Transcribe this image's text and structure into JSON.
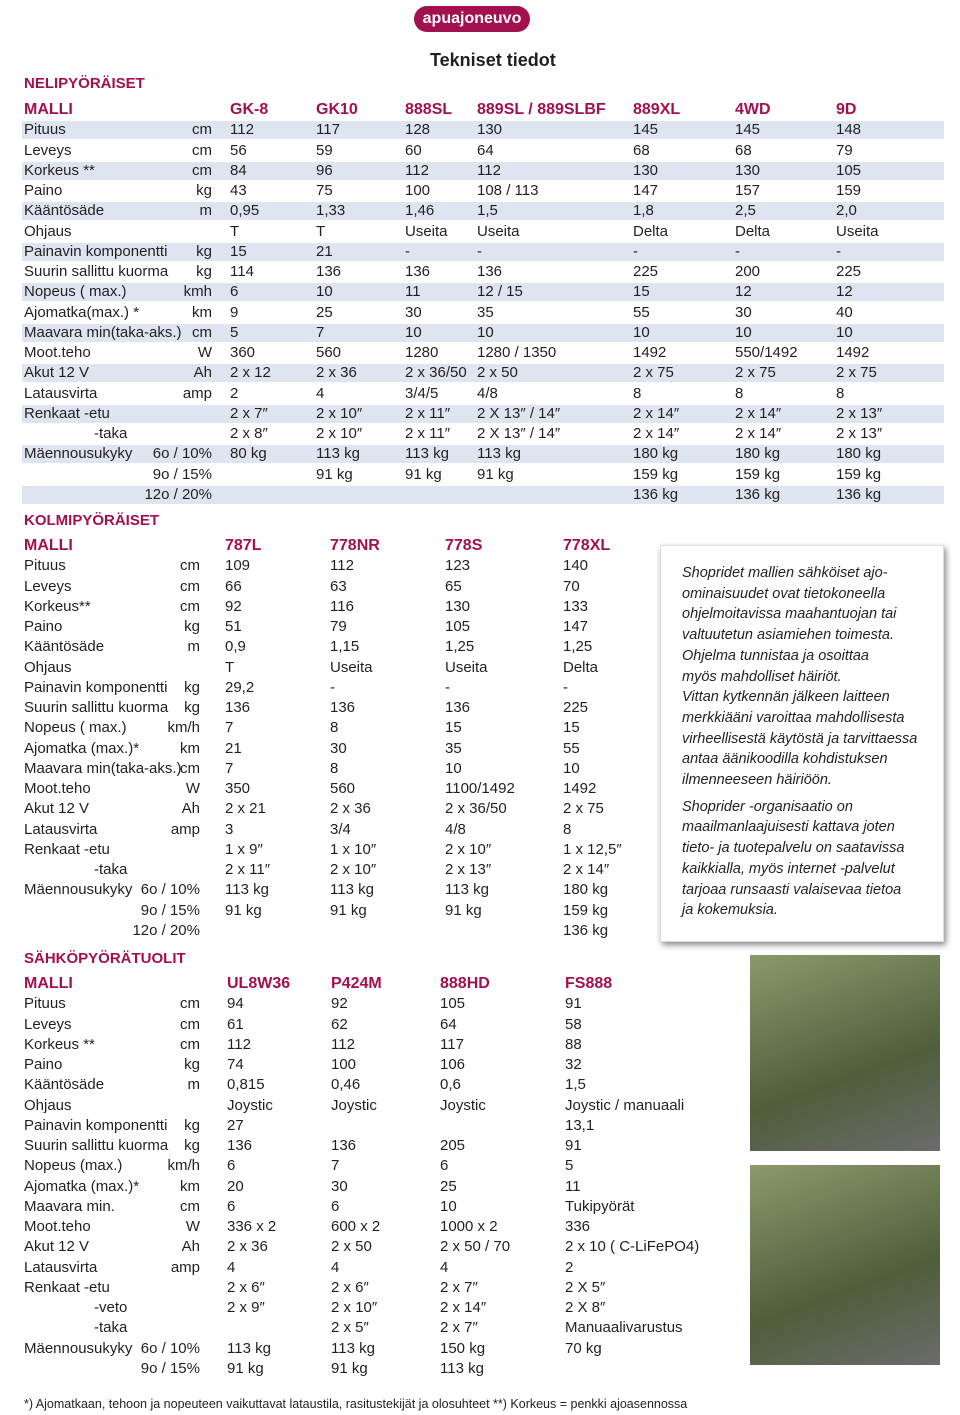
{
  "logo": "apuajoneuvo",
  "title": "Tekniset tiedot",
  "sections": [
    {
      "heading": "NELIPYÖRÄISET",
      "header": [
        "MALLI",
        "GK-8",
        "GK10",
        "888SL",
        "889SL / 889SLBF",
        "889XL",
        "4WD",
        "9D"
      ],
      "rows": [
        [
          "Pituus",
          "cm",
          "112",
          "117",
          "128",
          "130",
          "145",
          "145",
          "148"
        ],
        [
          "Leveys",
          "cm",
          "56",
          "59",
          "60",
          "64",
          "68",
          "68",
          "79"
        ],
        [
          "Korkeus **",
          "cm",
          "84",
          "96",
          "112",
          "112",
          "130",
          "130",
          "105"
        ],
        [
          "Paino",
          "kg",
          "43",
          "75",
          "100",
          "108 / 113",
          "147",
          "157",
          "159"
        ],
        [
          "Kääntösäde",
          "m",
          "0,95",
          "1,33",
          "1,46",
          "1,5",
          "1,8",
          "2,5",
          "2,0"
        ],
        [
          "Ohjaus",
          null,
          "T",
          "T",
          "Useita",
          "Useita",
          "Delta",
          "Delta",
          "Useita"
        ],
        [
          "Painavin komponentti",
          "kg",
          "15",
          "21",
          "-",
          "-",
          "-",
          "-",
          "-"
        ],
        [
          "Suurin sallittu kuorma",
          "kg",
          "114",
          "136",
          "136",
          "136",
          "225",
          "200",
          "225"
        ],
        [
          "Nopeus ( max.)",
          "kmh",
          "6",
          "10",
          "11",
          "12 / 15",
          "15",
          "12",
          "12"
        ],
        [
          "Ajomatka(max.) *",
          "km",
          "9",
          "25",
          "30",
          "35",
          "55",
          "30",
          "40"
        ],
        [
          "Maavara min(taka-aks.)",
          "cm",
          "5",
          "7",
          "10",
          "10",
          "10",
          "10",
          "10"
        ],
        [
          "Moot.teho",
          "W",
          "360",
          "560",
          "1280",
          "1280 / 1350",
          "1492",
          "550/1492",
          "1492"
        ],
        [
          "Akut 12 V",
          "Ah",
          "2 x 12",
          "2 x 36",
          "2 x 36/50",
          "2 x 50",
          "2 x 75",
          "2 x 75",
          "2 x 75"
        ],
        [
          "Latausvirta",
          "amp",
          "2",
          "4",
          "3/4/5",
          "4/8",
          "8",
          "8",
          "8"
        ],
        [
          "Renkaat -etu",
          null,
          "2 x 7″",
          "2 x 10″",
          "2 x 11″",
          "2 X 13″ / 14″",
          "2 x 14″",
          "2 x 14″",
          "2 x 13″"
        ],
        [
          "-taka",
          null,
          "2 x 8″",
          "2 x 10″",
          "2 x 11″",
          "2 X 13″ / 14″",
          "2 x 14″",
          "2 x 14″",
          "2 x 13″"
        ],
        [
          "Mäennousukyky",
          "6o / 10%",
          "80 kg",
          "113 kg",
          "113 kg",
          "113 kg",
          "180 kg",
          "180 kg",
          "180 kg"
        ],
        [
          null,
          "9o / 15%",
          null,
          "91 kg",
          "91 kg",
          "91 kg",
          "159 kg",
          "159 kg",
          "159 kg"
        ],
        [
          null,
          "12o / 20%",
          null,
          null,
          null,
          null,
          "136 kg",
          "136 kg",
          "136 kg"
        ]
      ]
    },
    {
      "heading": "KOLMIPYÖRÄISET",
      "header": [
        "MALLI",
        "787L",
        "778NR",
        "778S",
        "778XL"
      ],
      "rows": [
        [
          "Pituus",
          "cm",
          "109",
          "112",
          "123",
          "140"
        ],
        [
          "Leveys",
          "cm",
          "66",
          "63",
          "65",
          "70"
        ],
        [
          "Korkeus**",
          "cm",
          "92",
          "116",
          "130",
          "133"
        ],
        [
          "Paino",
          "kg",
          "51",
          "79",
          "105",
          "147"
        ],
        [
          "Kääntösäde",
          "m",
          "0,9",
          "1,15",
          "1,25",
          "1,25"
        ],
        [
          "Ohjaus",
          null,
          "T",
          "Useita",
          "Useita",
          "Delta"
        ],
        [
          "Painavin komponentti",
          "kg",
          "29,2",
          "-",
          "-",
          "-"
        ],
        [
          "Suurin sallittu kuorma",
          "kg",
          "136",
          "136",
          "136",
          "225"
        ],
        [
          "Nopeus ( max.)",
          "km/h",
          "7",
          "8",
          "15",
          "15"
        ],
        [
          "Ajomatka (max.)*",
          "km",
          "21",
          "30",
          "35",
          "55"
        ],
        [
          "Maavara min(taka-aks.)",
          "cm",
          "7",
          "8",
          "10",
          "10"
        ],
        [
          "Moot.teho",
          "W",
          "350",
          "560",
          "1100/1492",
          "1492"
        ],
        [
          "Akut 12 V",
          "Ah",
          "2 x 21",
          "2 x 36",
          "2 x 36/50",
          "2 x 75"
        ],
        [
          "Latausvirta",
          "amp",
          "3",
          "3/4",
          "4/8",
          "8"
        ],
        [
          "Renkaat -etu",
          null,
          "1 x 9″",
          "1 x 10″",
          "2 x 10″",
          "1 x 12,5″"
        ],
        [
          "-taka",
          null,
          "2 x 11″",
          "2 x 10″",
          "2 x 13″",
          "2 x 14″"
        ],
        [
          "Mäennousukyky",
          "6o / 10%",
          "113 kg",
          "113 kg",
          "113 kg",
          "180 kg"
        ],
        [
          null,
          "9o / 15%",
          "91 kg",
          "91 kg",
          "91 kg",
          "159 kg"
        ],
        [
          null,
          "12o / 20%",
          null,
          null,
          null,
          "136 kg"
        ]
      ]
    },
    {
      "heading": "SÄHKÖPYÖRÄTUOLIT",
      "header": [
        "MALLI",
        "UL8W36",
        "P424M",
        "888HD",
        "FS888"
      ],
      "rows": [
        [
          "Pituus",
          "cm",
          "94",
          "92",
          "105",
          "91"
        ],
        [
          "Leveys",
          "cm",
          "61",
          "62",
          "64",
          "58"
        ],
        [
          "Korkeus **",
          "cm",
          "112",
          "112",
          "117",
          "88"
        ],
        [
          "Paino",
          "kg",
          "74",
          "100",
          "106",
          "32"
        ],
        [
          "Kääntösäde",
          "m",
          "0,815",
          "0,46",
          "0,6",
          "1,5"
        ],
        [
          "Ohjaus",
          null,
          "Joystic",
          "Joystic",
          "Joystic",
          "Joystic / manuaali"
        ],
        [
          "Painavin komponentti",
          "kg",
          "27",
          null,
          null,
          "13,1"
        ],
        [
          "Suurin sallittu kuorma",
          "kg",
          "136",
          "136",
          "205",
          "91"
        ],
        [
          "Nopeus (max.)",
          "km/h",
          "6",
          "7",
          "6",
          "5"
        ],
        [
          "Ajomatka (max.)*",
          "km",
          "20",
          "30",
          "25",
          "11"
        ],
        [
          "Maavara min.",
          "cm",
          "6",
          "6",
          "10",
          "Tukipyörät"
        ],
        [
          "Moot.teho",
          "W",
          "336 x 2",
          "600 x 2",
          "1000 x 2",
          "336"
        ],
        [
          "Akut 12 V",
          "Ah",
          "2 x 36",
          "2 x 50",
          "2 x 50 / 70",
          "2 x 10 ( C-LiFePO4)"
        ],
        [
          "Latausvirta",
          "amp",
          "4",
          "4",
          "4",
          "2"
        ],
        [
          "Renkaat -etu",
          null,
          "2 x 6″",
          "2 x 6″",
          "2 x 7″",
          "2 X 5″"
        ],
        [
          "-veto",
          null,
          "2 x 9″",
          "2 x 10″",
          "2 x 14″",
          "2 X 8″"
        ],
        [
          "-taka",
          null,
          null,
          "2 x 5″",
          "2 x 7″",
          "Manuaalivarustus"
        ],
        [
          "Mäennousukyky",
          "6o / 10%",
          "113 kg",
          "113 kg",
          "150 kg",
          "70 kg"
        ],
        [
          null,
          "9o / 15%",
          "91 kg",
          "91 kg",
          "113 kg",
          null
        ]
      ]
    }
  ],
  "note": [
    [
      "Shopridet mallien sähköiset ajo-",
      "ominaisuudet ovat tietokoneella",
      "ohjelmoitavissa maahantuojan tai",
      "valtuutetun asiamiehen toimesta.",
      "Ohjelma tunnistaa ja osoittaa",
      "myös mahdolliset häiriöt.",
      "Vittan kytkennän jälkeen laitteen",
      "merkkiääni varoittaa mahdollisesta",
      "virheellisestä käytöstä ja tarvittaessa",
      "antaa äänikoodilla kohdistuksen",
      "ilmenneeseen häiriöön."
    ],
    [
      "Shoprider -organisaatio on",
      "maailmanlaajuisesti kattava joten",
      "tieto- ja tuotepalvelu on saatavissa",
      "kaikkialla, myös internet -palvelut",
      "tarjoaa runsaasti valaisevaa tietoa",
      "ja kokemuksia."
    ]
  ],
  "footnote": "*) Ajomatkaan, tehoon ja nopeuteen vaikuttavat lataustila, rasitustekijät ja olosuhteet  **) Korkeus = penkki ajoasennossa"
}
